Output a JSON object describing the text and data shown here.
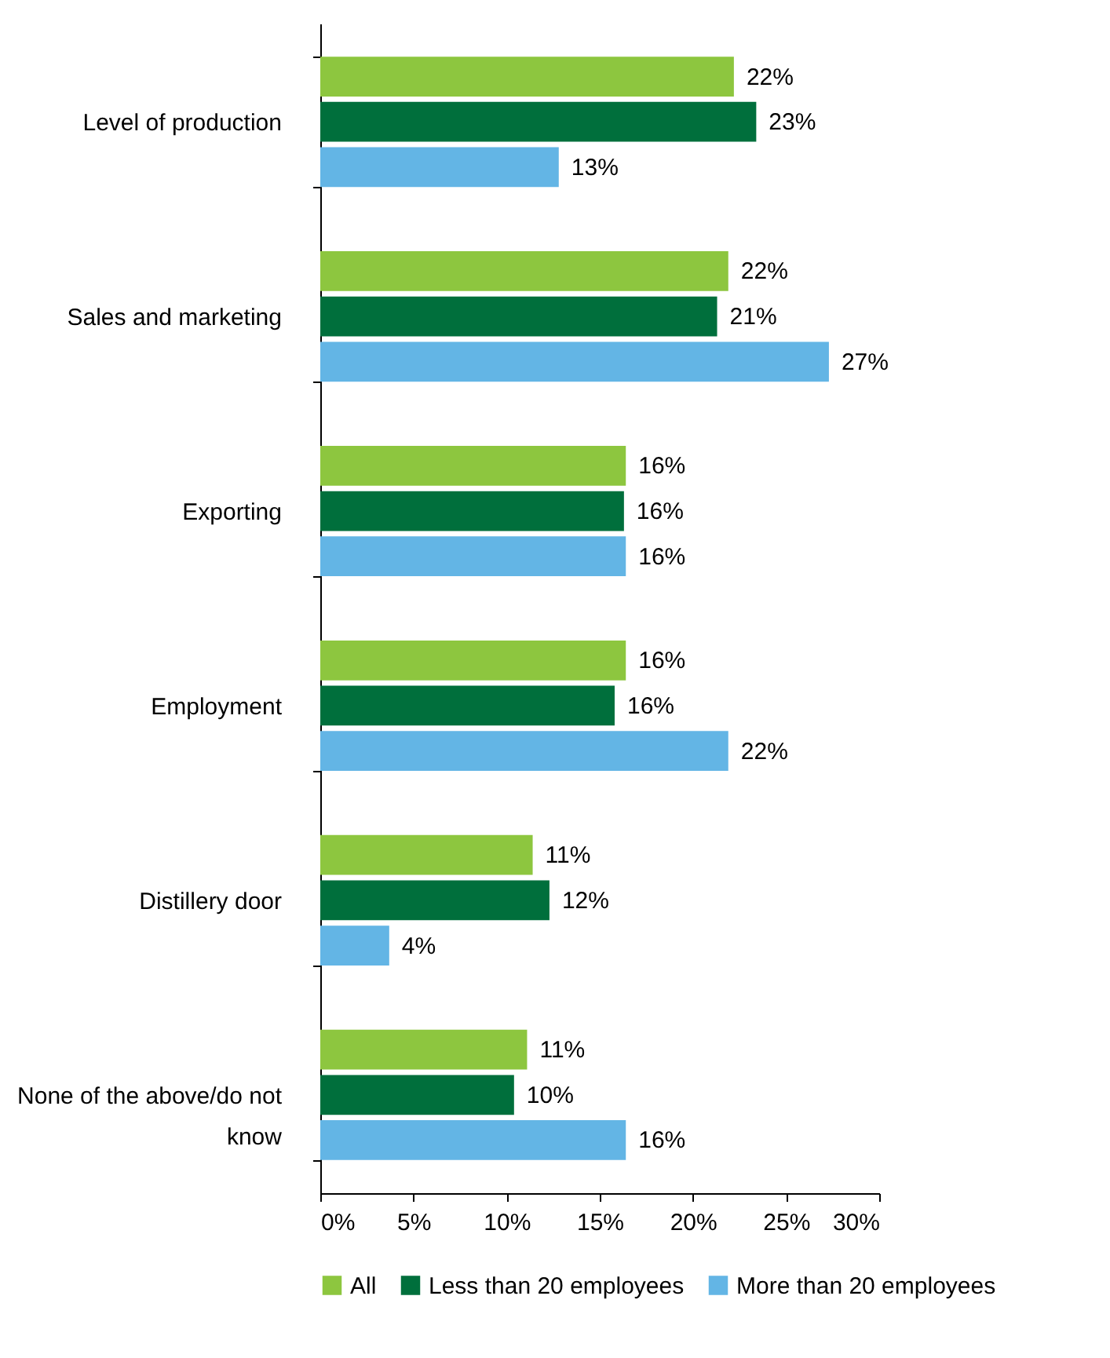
{
  "chart_data": {
    "type": "bar",
    "orientation": "horizontal",
    "categories": [
      "Level of production",
      "Sales and marketing",
      "Exporting",
      "Employment",
      "Distillery door",
      "None of the above/do not know"
    ],
    "series": [
      {
        "name": "All",
        "color": "#8dc63f",
        "values": [
          22.2,
          21.9,
          16.4,
          16.4,
          11.4,
          11.1
        ],
        "value_labels": [
          "22%",
          "22%",
          "16%",
          "16%",
          "11%",
          "11%"
        ]
      },
      {
        "name": "Less than 20 employees",
        "color": "#006f3c",
        "values": [
          23.4,
          21.3,
          16.3,
          15.8,
          12.3,
          10.4
        ],
        "value_labels": [
          "23%",
          "21%",
          "16%",
          "16%",
          "12%",
          "10%"
        ]
      },
      {
        "name": "More than 20 employees",
        "color": "#63b5e5",
        "values": [
          12.8,
          27.3,
          16.4,
          21.9,
          3.7,
          16.4
        ],
        "value_labels": [
          "13%",
          "27%",
          "16%",
          "22%",
          "4%",
          "16%"
        ]
      }
    ],
    "xlim": [
      0,
      30
    ],
    "xticks": [
      {
        "value": 0,
        "label": "0%"
      },
      {
        "value": 5,
        "label": "5%"
      },
      {
        "value": 10,
        "label": "10%"
      },
      {
        "value": 15,
        "label": "15%"
      },
      {
        "value": 20,
        "label": "20%"
      },
      {
        "value": 25,
        "label": "25%"
      },
      {
        "value": 30,
        "label": "30%"
      }
    ],
    "legend": "bottom"
  }
}
